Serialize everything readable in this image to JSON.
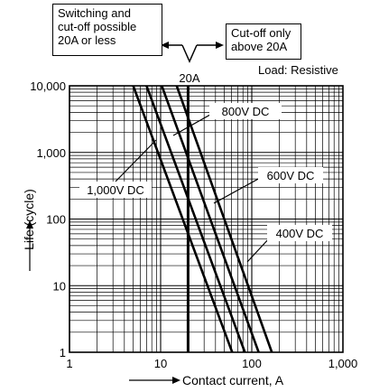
{
  "callouts": {
    "left": [
      "Switching and",
      "cut-off possible",
      "20A or less"
    ],
    "right": [
      "Cut-off only",
      "above 20A"
    ],
    "boundary_label": "20A"
  },
  "load_label": "Load: Resistive",
  "chart_data": {
    "type": "line",
    "x_scale": "log",
    "y_scale": "log",
    "xlim": [
      1,
      1000
    ],
    "ylim": [
      1,
      10000
    ],
    "xlabel": "Contact current, A",
    "ylabel": "Life (cycle)",
    "x_ticks": [
      {
        "v": 1,
        "label": "1"
      },
      {
        "v": 10,
        "label": "10"
      },
      {
        "v": 100,
        "label": "100"
      },
      {
        "v": 1000,
        "label": "1,000"
      }
    ],
    "y_ticks": [
      {
        "v": 1,
        "label": "1"
      },
      {
        "v": 10,
        "label": "10"
      },
      {
        "v": 100,
        "label": "100"
      },
      {
        "v": 1000,
        "label": "1,000"
      },
      {
        "v": 10000,
        "label": "10,000"
      }
    ],
    "grid": true,
    "boundary_x": 20,
    "series": [
      {
        "name": "1,000V DC",
        "points": [
          [
            5,
            10000
          ],
          [
            61,
            1
          ]
        ]
      },
      {
        "name": "800V DC",
        "points": [
          [
            7,
            10000
          ],
          [
            84,
            1
          ]
        ]
      },
      {
        "name": "600V DC",
        "points": [
          [
            10.3,
            10000
          ],
          [
            119,
            1
          ]
        ]
      },
      {
        "name": "400V DC",
        "points": [
          [
            15,
            10000
          ],
          [
            166,
            1
          ]
        ]
      }
    ]
  }
}
